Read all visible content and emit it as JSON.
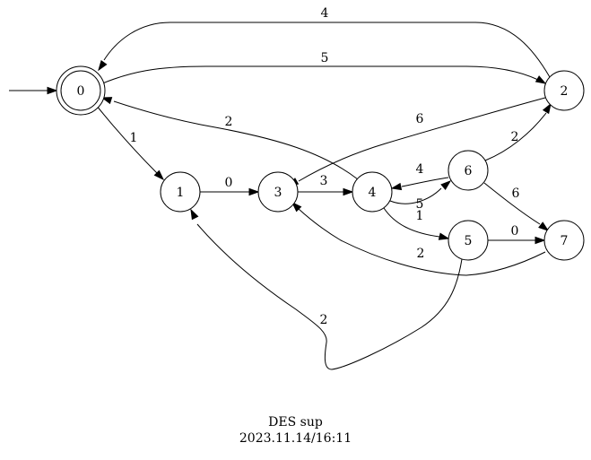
{
  "caption": {
    "title": "DES sup",
    "date": "2023.11.14/16:11"
  },
  "initial_state": "0",
  "states": [
    {
      "id": "0",
      "label": "0",
      "marked": true
    },
    {
      "id": "1",
      "label": "1",
      "marked": false
    },
    {
      "id": "2",
      "label": "2",
      "marked": false
    },
    {
      "id": "3",
      "label": "3",
      "marked": false
    },
    {
      "id": "4",
      "label": "4",
      "marked": false
    },
    {
      "id": "5",
      "label": "5",
      "marked": false
    },
    {
      "id": "6",
      "label": "6",
      "marked": false
    },
    {
      "id": "7",
      "label": "7",
      "marked": false
    }
  ],
  "transitions": [
    {
      "from": "2",
      "to": "0",
      "label": "4"
    },
    {
      "from": "0",
      "to": "2",
      "label": "5"
    },
    {
      "from": "0",
      "to": "1",
      "label": "1"
    },
    {
      "from": "4",
      "to": "0",
      "label": "2"
    },
    {
      "from": "2",
      "to": "3",
      "label": "6"
    },
    {
      "from": "1",
      "to": "3",
      "label": "0"
    },
    {
      "from": "3",
      "to": "4",
      "label": "3"
    },
    {
      "from": "6",
      "to": "4",
      "label": "4"
    },
    {
      "from": "4",
      "to": "6",
      "label": "5"
    },
    {
      "from": "6",
      "to": "2",
      "label": "2"
    },
    {
      "from": "6",
      "to": "7",
      "label": "6"
    },
    {
      "from": "4",
      "to": "5",
      "label": "1"
    },
    {
      "from": "5",
      "to": "7",
      "label": "0"
    },
    {
      "from": "7",
      "to": "3",
      "label": "2"
    },
    {
      "from": "5",
      "to": "1",
      "label": "2"
    }
  ]
}
